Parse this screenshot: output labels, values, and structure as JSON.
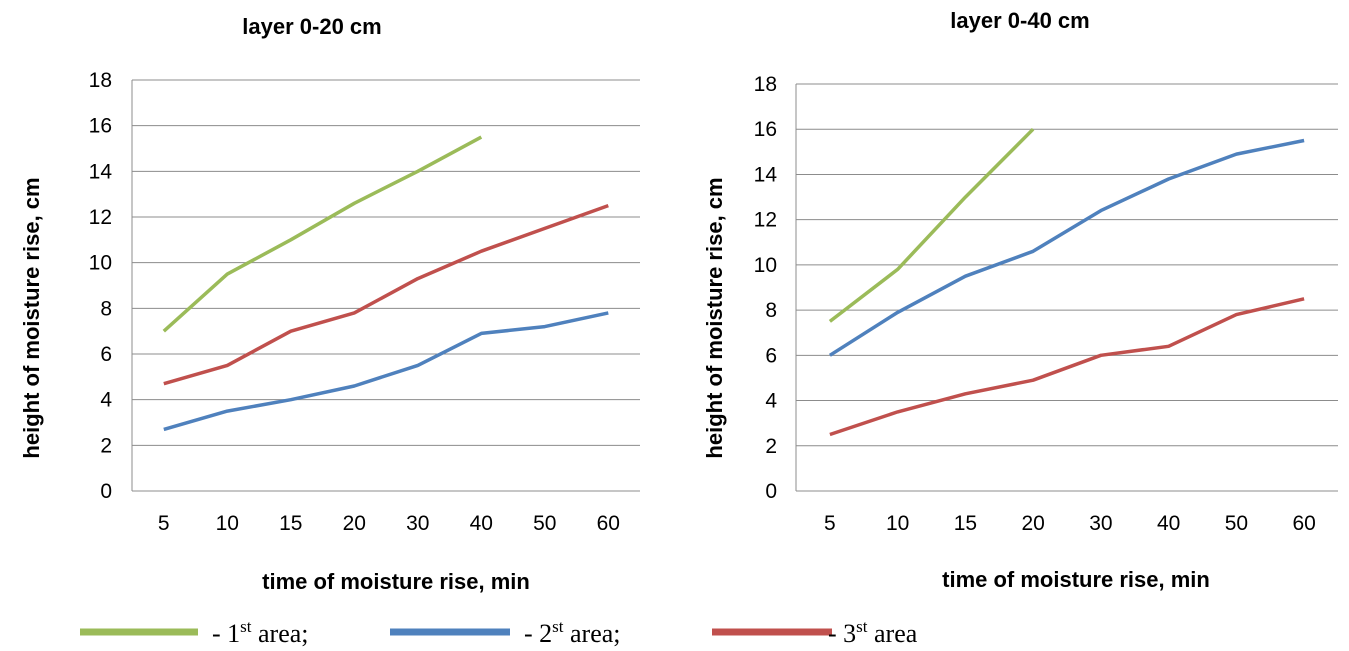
{
  "colors": {
    "area1": "#9bbb59",
    "area2": "#4f81bd",
    "area3": "#c0504d"
  },
  "legend": [
    {
      "prefix": "- 1",
      "sup": "st",
      "suffix": " area;"
    },
    {
      "prefix": "- 2",
      "sup": "st",
      "suffix": " area;"
    },
    {
      "prefix": "- 3",
      "sup": "st",
      "suffix": " area"
    }
  ],
  "chart_data": [
    {
      "type": "line",
      "title": "layer 0-20 cm",
      "xlabel": "time of moisture rise, min",
      "ylabel": "height of moisture rise, cm",
      "categories": [
        "5",
        "10",
        "15",
        "20",
        "30",
        "40",
        "50",
        "60"
      ],
      "ylim": [
        0,
        18
      ],
      "yticks": [
        "0",
        "2",
        "4",
        "6",
        "8",
        "10",
        "12",
        "14",
        "16",
        "18"
      ],
      "grid": true,
      "series": [
        {
          "key": "area1",
          "values": [
            7.0,
            9.5,
            11.0,
            12.6,
            14.0,
            15.5,
            null,
            null
          ]
        },
        {
          "key": "area2",
          "values": [
            2.7,
            3.5,
            4.0,
            4.6,
            5.5,
            6.9,
            7.2,
            7.8
          ]
        },
        {
          "key": "area3",
          "values": [
            4.7,
            5.5,
            7.0,
            7.8,
            9.3,
            10.5,
            11.5,
            12.5
          ]
        }
      ]
    },
    {
      "type": "line",
      "title": "layer 0-40 cm",
      "xlabel": "time of moisture rise, min",
      "ylabel": "height of moisture rise, cm",
      "categories": [
        "5",
        "10",
        "15",
        "20",
        "30",
        "40",
        "50",
        "60"
      ],
      "ylim": [
        0,
        18
      ],
      "yticks": [
        "0",
        "2",
        "4",
        "6",
        "8",
        "10",
        "12",
        "14",
        "16",
        "18"
      ],
      "grid": true,
      "series": [
        {
          "key": "area1",
          "values": [
            7.5,
            9.8,
            13.0,
            16.0,
            null,
            null,
            null,
            null
          ]
        },
        {
          "key": "area2",
          "values": [
            6.0,
            7.9,
            9.5,
            10.6,
            12.4,
            13.8,
            14.9,
            15.5
          ]
        },
        {
          "key": "area3",
          "values": [
            2.5,
            3.5,
            4.3,
            4.9,
            6.0,
            6.4,
            7.8,
            8.5
          ]
        }
      ]
    }
  ]
}
